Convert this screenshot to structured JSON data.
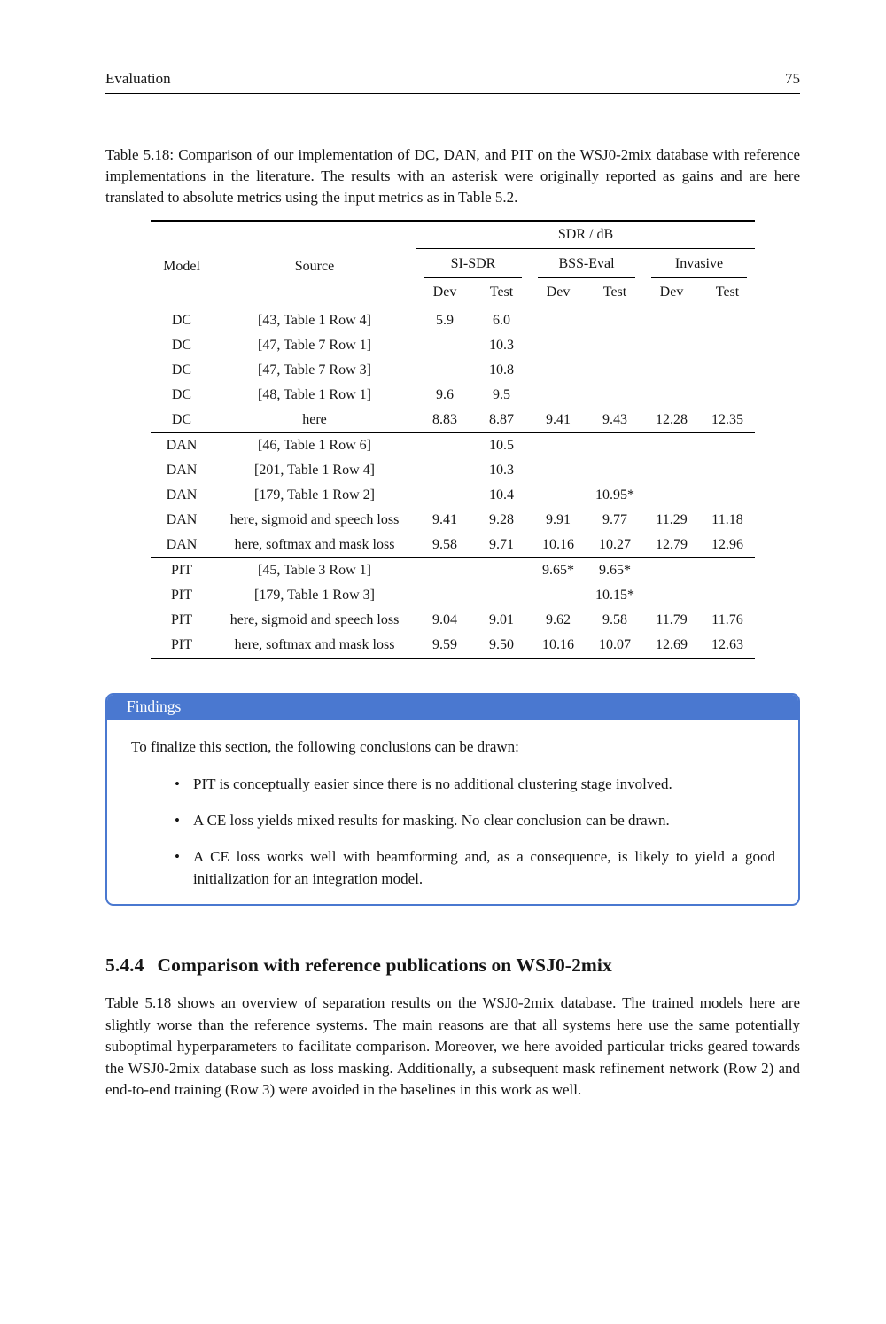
{
  "page": {
    "header_left": "Evaluation",
    "page_number": "75"
  },
  "caption": "Table 5.18: Comparison of our implementation of DC, DAN, and PIT on the WSJ0-2mix database with reference implementations in the literature.  The results with an asterisk were originally reported as gains and are here translated to absolute metrics using the input metrics as in Table 5.2.",
  "table": {
    "group_title": "SDR / dB",
    "col_model": "Model",
    "col_source": "Source",
    "groups": [
      "SI-SDR",
      "BSS-Eval",
      "Invasive"
    ],
    "subheaders": [
      "Dev",
      "Test",
      "Dev",
      "Test",
      "Dev",
      "Test"
    ],
    "sections": [
      {
        "rows": [
          {
            "model": "DC",
            "source": "[43, Table 1 Row 4]",
            "values": [
              "5.9",
              "6.0",
              "",
              "",
              "",
              ""
            ]
          },
          {
            "model": "DC",
            "source": "[47, Table 7 Row 1]",
            "values": [
              "",
              "10.3",
              "",
              "",
              "",
              ""
            ]
          },
          {
            "model": "DC",
            "source": "[47, Table 7 Row 3]",
            "values": [
              "",
              "10.8",
              "",
              "",
              "",
              ""
            ]
          },
          {
            "model": "DC",
            "source": "[48, Table 1 Row 1]",
            "values": [
              "9.6",
              "9.5",
              "",
              "",
              "",
              ""
            ]
          },
          {
            "model": "DC",
            "source": "here",
            "values": [
              "8.83",
              "8.87",
              "9.41",
              "9.43",
              "12.28",
              "12.35"
            ]
          }
        ]
      },
      {
        "rows": [
          {
            "model": "DAN",
            "source": "[46, Table 1 Row 6]",
            "values": [
              "",
              "10.5",
              "",
              "",
              "",
              ""
            ]
          },
          {
            "model": "DAN",
            "source": "[201, Table 1 Row 4]",
            "values": [
              "",
              "10.3",
              "",
              "",
              "",
              ""
            ]
          },
          {
            "model": "DAN",
            "source": "[179, Table 1 Row 2]",
            "values": [
              "",
              "10.4",
              "",
              "10.95*",
              "",
              ""
            ]
          },
          {
            "model": "DAN",
            "source": "here, sigmoid and speech loss",
            "values": [
              "9.41",
              "9.28",
              "9.91",
              "9.77",
              "11.29",
              "11.18"
            ]
          },
          {
            "model": "DAN",
            "source": "here, softmax and mask loss",
            "values": [
              "9.58",
              "9.71",
              "10.16",
              "10.27",
              "12.79",
              "12.96"
            ]
          }
        ]
      },
      {
        "rows": [
          {
            "model": "PIT",
            "source": "[45, Table 3 Row 1]",
            "values": [
              "",
              "",
              "9.65*",
              "9.65*",
              "",
              ""
            ]
          },
          {
            "model": "PIT",
            "source": "[179, Table 1 Row 3]",
            "values": [
              "",
              "",
              "",
              "10.15*",
              "",
              ""
            ]
          },
          {
            "model": "PIT",
            "source": "here, sigmoid and speech loss",
            "values": [
              "9.04",
              "9.01",
              "9.62",
              "9.58",
              "11.79",
              "11.76"
            ]
          },
          {
            "model": "PIT",
            "source": "here, softmax and mask loss",
            "values": [
              "9.59",
              "9.50",
              "10.16",
              "10.07",
              "12.69",
              "12.63"
            ]
          }
        ]
      }
    ]
  },
  "findings": {
    "title": "Findings",
    "intro": "To finalize this section, the following conclusions can be drawn:",
    "bullets": [
      "PIT is conceptually easier since there is no additional clustering stage involved.",
      "A CE loss yields mixed results for masking. No clear conclusion can be drawn.",
      "A CE loss works well with beamforming and, as a consequence, is likely to yield a good initialization for an integration model."
    ],
    "accent_color": "#4a78d0"
  },
  "section": {
    "number": "5.4.4",
    "title": "Comparison with reference publications on WSJ0-2mix"
  },
  "body_paragraph": "Table 5.18 shows an overview of separation results on the WSJ0-2mix database.  The trained models here are slightly worse than the reference systems.  The main reasons are that all systems here use the same potentially suboptimal hyperparameters to facilitate comparison. Moreover, we here avoided particular tricks geared towards the WSJ0-2mix database such as loss masking.  Additionally, a subsequent mask refinement network (Row 2) and end-to-end training (Row 3) were avoided in the baselines in this work as well."
}
